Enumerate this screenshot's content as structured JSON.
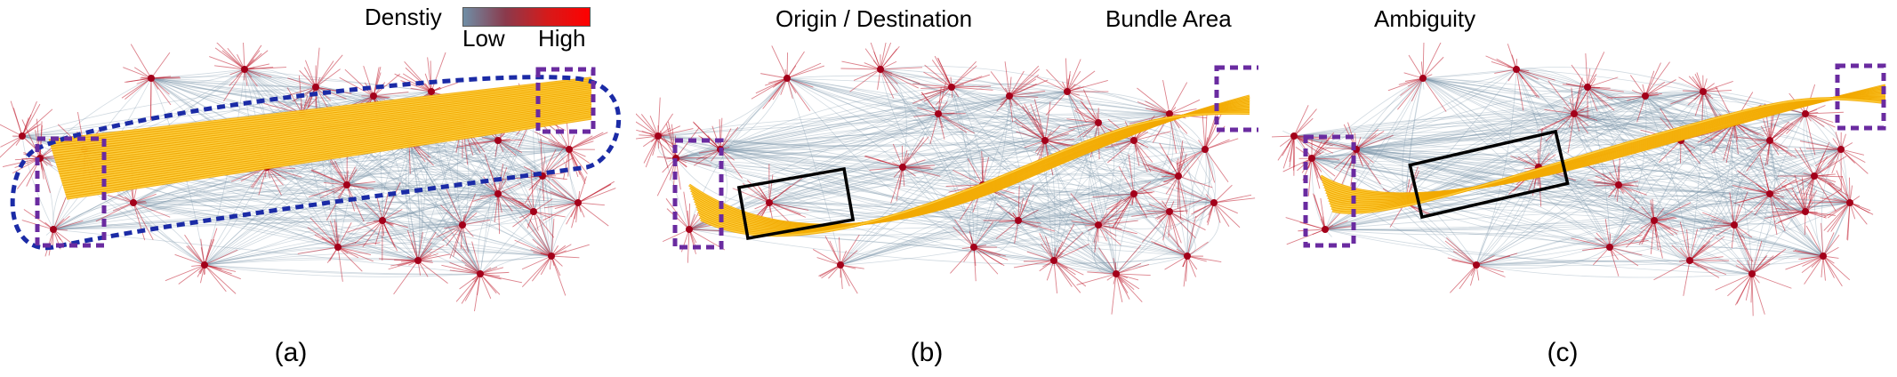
{
  "legend": {
    "density_title": "Denstiy",
    "low_label": "Low",
    "high_label": "High",
    "colormap": [
      "#6f8ea6",
      "#8a3a4c",
      "#d61a1a",
      "#ff0000"
    ],
    "items": [
      {
        "label": "Origin / Destination",
        "style": "dotted",
        "color": "#6a2ba0"
      },
      {
        "label": "Bundle Area",
        "style": "dotted",
        "color": "#1b2ba6"
      },
      {
        "label": "Ambiguity",
        "style": "solid",
        "color": "#000000"
      }
    ]
  },
  "panels": [
    {
      "caption": "(a)"
    },
    {
      "caption": "(b)"
    },
    {
      "caption": "(c)"
    }
  ],
  "colors": {
    "edge_low": "#7b95a8",
    "edge_high": "#c0192b",
    "highlight": "#f2a900",
    "highlight_core": "#ffd54a",
    "od_box": "#6a2ba0",
    "bundle_area": "#1b2ba6",
    "ambiguity": "#000000"
  }
}
